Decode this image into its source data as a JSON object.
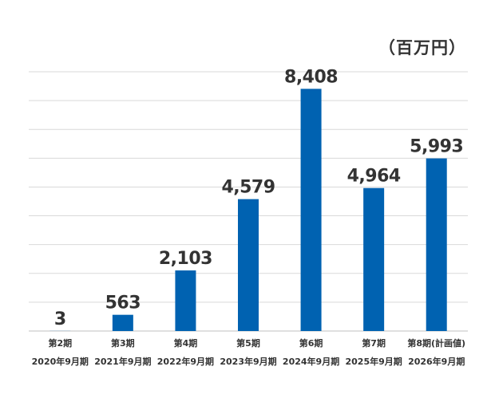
{
  "unit_label": "（百万円）",
  "colors": {
    "bar": "#0062b1",
    "grid": "#d9d9d9",
    "axis": "#bfbfbf",
    "text": "#333333"
  },
  "chart_data": {
    "type": "bar",
    "title": "",
    "xlabel": "",
    "ylabel": "",
    "unit": "（百万円）",
    "categories": [
      {
        "period": "第2期",
        "date": "2020年9月期"
      },
      {
        "period": "第3期",
        "date": "2021年9月期"
      },
      {
        "period": "第4期",
        "date": "2022年9月期"
      },
      {
        "period": "第5期",
        "date": "2023年9月期"
      },
      {
        "period": "第6期",
        "date": "2024年9月期"
      },
      {
        "period": "第7期",
        "date": "2025年9月期"
      },
      {
        "period": "第8期(計画値)",
        "date": "2026年9月期"
      }
    ],
    "values": [
      3,
      563,
      2103,
      4579,
      8408,
      4964,
      5993
    ],
    "data_labels": [
      "3",
      "563",
      "2,103",
      "4,579",
      "8,408",
      "4,964",
      "5,993"
    ],
    "ylim": [
      0,
      9000
    ],
    "gridlines": 9,
    "grid": true,
    "legend": "none"
  }
}
